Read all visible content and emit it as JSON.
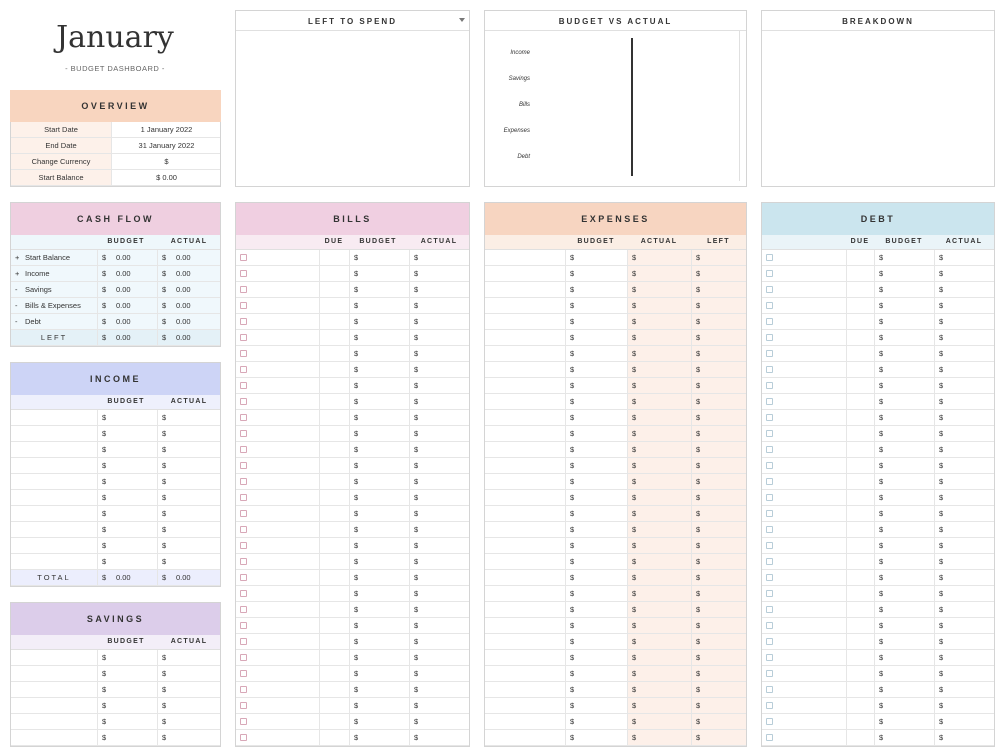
{
  "header": {
    "month": "January",
    "subtitle": "- BUDGET DASHBOARD -"
  },
  "colors": {
    "overview": "#f8d5bf",
    "cashflow": "#efcfe0",
    "income": "#cdd4f6",
    "savings": "#dccdea",
    "bills": "#f0cfe1",
    "expenses": "#f7d5c1",
    "debt": "#cbe5ee"
  },
  "overview": {
    "title": "OVERVIEW",
    "rows": [
      {
        "label": "Start Date",
        "value": "1 January 2022"
      },
      {
        "label": "End Date",
        "value": "31 January 2022"
      },
      {
        "label": "Change Currency",
        "value": "$"
      },
      {
        "label": "Start Balance",
        "value": "$    0.00"
      }
    ]
  },
  "charts": {
    "left_to_spend": {
      "title": "LEFT TO SPEND",
      "menu_icon": "dropdown-triangle"
    },
    "budget_vs_actual": {
      "title": "BUDGET VS ACTUAL",
      "labels": [
        "Income",
        "Savings",
        "Bills",
        "Expenses",
        "Debt"
      ]
    },
    "breakdown": {
      "title": "BREAKDOWN"
    }
  },
  "cashflow": {
    "title": "CASH FLOW",
    "headers": [
      "BUDGET",
      "ACTUAL"
    ],
    "rows": [
      {
        "sign": "+",
        "label": "Start Balance",
        "budget": "0.00",
        "actual": "0.00"
      },
      {
        "sign": "+",
        "label": "Income",
        "budget": "0.00",
        "actual": "0.00"
      },
      {
        "sign": "-",
        "label": "Savings",
        "budget": "0.00",
        "actual": "0.00"
      },
      {
        "sign": "-",
        "label": "Bills & Expenses",
        "budget": "0.00",
        "actual": "0.00"
      },
      {
        "sign": "-",
        "label": "Debt",
        "budget": "0.00",
        "actual": "0.00"
      }
    ],
    "total": {
      "label": "LEFT",
      "budget": "0.00",
      "actual": "0.00"
    }
  },
  "income": {
    "title": "INCOME",
    "headers": [
      "BUDGET",
      "ACTUAL"
    ],
    "row_count": 10,
    "total": {
      "label": "TOTAL",
      "budget": "0.00",
      "actual": "0.00"
    }
  },
  "savings": {
    "title": "SAVINGS",
    "headers": [
      "BUDGET",
      "ACTUAL"
    ],
    "row_count": 6
  },
  "bills": {
    "title": "BILLS",
    "headers": [
      "DUE",
      "BUDGET",
      "ACTUAL"
    ],
    "row_count": 31
  },
  "expenses": {
    "title": "EXPENSES",
    "headers": [
      "BUDGET",
      "ACTUAL",
      "LEFT"
    ],
    "row_count": 31
  },
  "debt": {
    "title": "DEBT",
    "headers": [
      "DUE",
      "BUDGET",
      "ACTUAL"
    ],
    "row_count": 31
  },
  "currency_symbol": "$"
}
